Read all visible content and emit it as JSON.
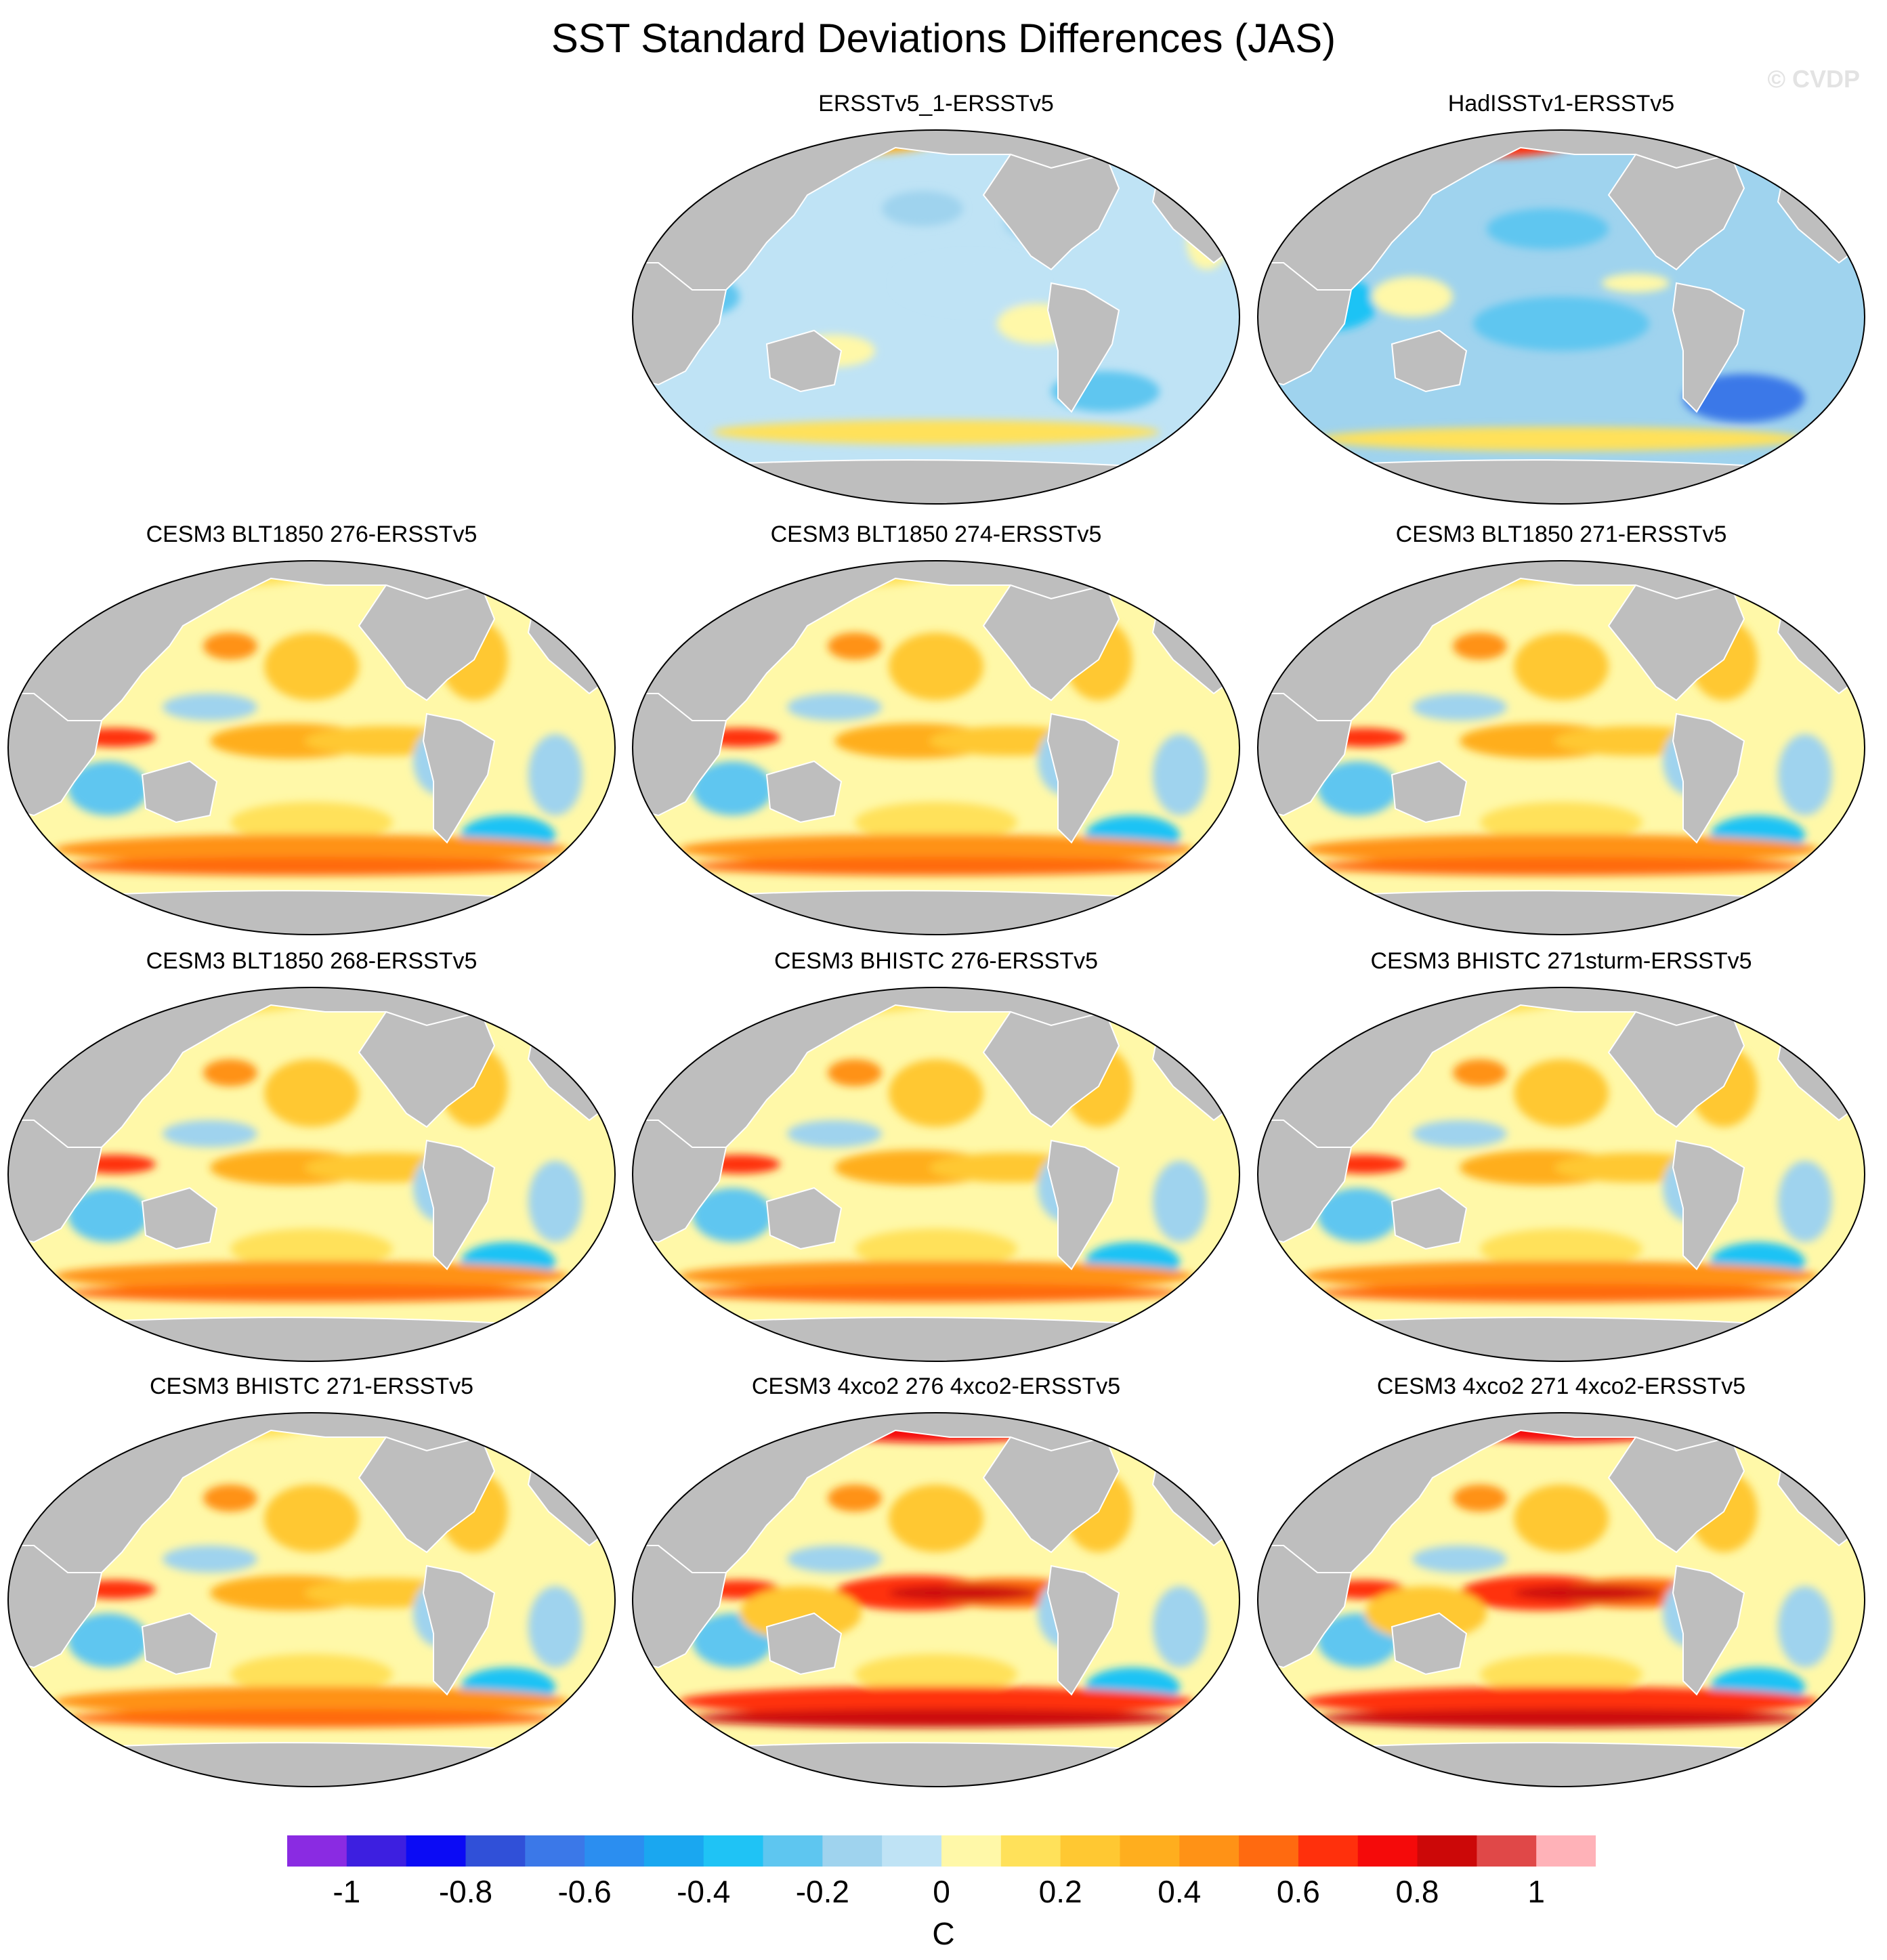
{
  "title": "SST Standard Deviations Differences (JAS)",
  "watermark": "© CVDP",
  "panels": [
    {
      "title": "ERSSTv5_1-ERSSTv5",
      "variant": "obs1"
    },
    {
      "title": "HadISSTv1-ERSSTv5",
      "variant": "obs2"
    },
    {
      "title": "CESM3 BLT1850 276-ERSSTv5",
      "variant": "model"
    },
    {
      "title": "CESM3 BLT1850 274-ERSSTv5",
      "variant": "model"
    },
    {
      "title": "CESM3 BLT1850 271-ERSSTv5",
      "variant": "model"
    },
    {
      "title": "CESM3 BLT1850 268-ERSSTv5",
      "variant": "model"
    },
    {
      "title": "CESM3 BHISTC 276-ERSSTv5",
      "variant": "model"
    },
    {
      "title": "CESM3 BHISTC 271sturm-ERSSTv5",
      "variant": "model"
    },
    {
      "title": "CESM3 BHISTC 271-ERSSTv5",
      "variant": "model"
    },
    {
      "title": "CESM3 4xco2 276 4xco2-ERSSTv5",
      "variant": "warm"
    },
    {
      "title": "CESM3 4xco2 271 4xco2-ERSSTv5",
      "variant": "warm"
    }
  ],
  "colorbar": {
    "colors": [
      "#8a2be2",
      "#3d1fe0",
      "#0b0bf5",
      "#3050d8",
      "#3b78e8",
      "#2b8ef0",
      "#1aa7f0",
      "#1fc3f5",
      "#5ec6f0",
      "#9fd3ee",
      "#bfe3f5",
      "#fff8a8",
      "#ffe15a",
      "#ffc832",
      "#ffae1e",
      "#ff9216",
      "#ff6a10",
      "#ff300c",
      "#f50a0a",
      "#cc0808",
      "#e04848",
      "#ffb2b8"
    ],
    "tick_labels": [
      "-1",
      "-0.8",
      "-0.6",
      "-0.4",
      "-0.2",
      "0",
      "0.2",
      "0.4",
      "0.6",
      "0.8",
      "1"
    ],
    "units": "C"
  }
}
